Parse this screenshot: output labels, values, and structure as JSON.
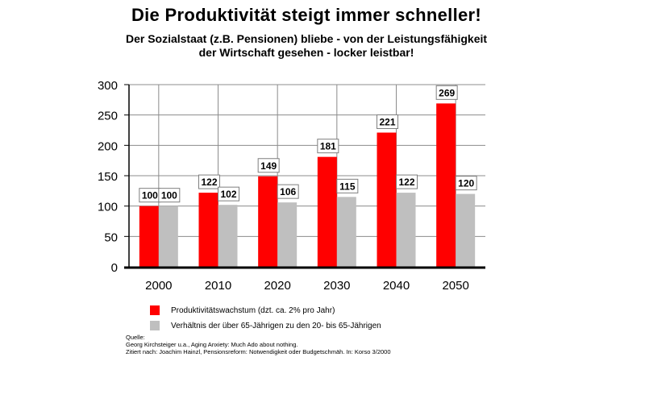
{
  "title": "Die Produktivität steigt immer schneller!",
  "subtitle_line1": "Der Sozialstaat (z.B. Pensionen) bliebe - von der Leistungsfähigkeit",
  "subtitle_line2": "der Wirtschaft gesehen - locker leistbar!",
  "colors": {
    "red": "#ff0000",
    "gray": "#bfbfbf"
  },
  "chart_data": {
    "type": "bar",
    "categories": [
      "2000",
      "2010",
      "2020",
      "2030",
      "2040",
      "2050"
    ],
    "series": [
      {
        "name": "Produktivitätswachstum (dzt. ca. 2% pro Jahr)",
        "color": "#ff0000",
        "values": [
          100,
          122,
          149,
          181,
          221,
          269
        ]
      },
      {
        "name": "Verhältnis der über 65-Jährigen zu den 20- bis 65-Jährigen",
        "color": "#bfbfbf",
        "values": [
          100,
          102,
          106,
          115,
          122,
          120
        ]
      }
    ],
    "ylim": [
      0,
      300
    ],
    "yticks": [
      "0",
      "50",
      "100",
      "150",
      "200",
      "250",
      "300"
    ],
    "grid": true,
    "legend": "bottom"
  },
  "source": {
    "line1": "Quelle:",
    "line2": "Georg Kirchsteiger u.a., Aging Anxiety: Much Ado about nothing.",
    "line3": "Zitiert nach: Joachim Hainzl, Pensionsreform: Notwendigkeit oder Budgetschmäh. In: Korso 3/2000"
  }
}
